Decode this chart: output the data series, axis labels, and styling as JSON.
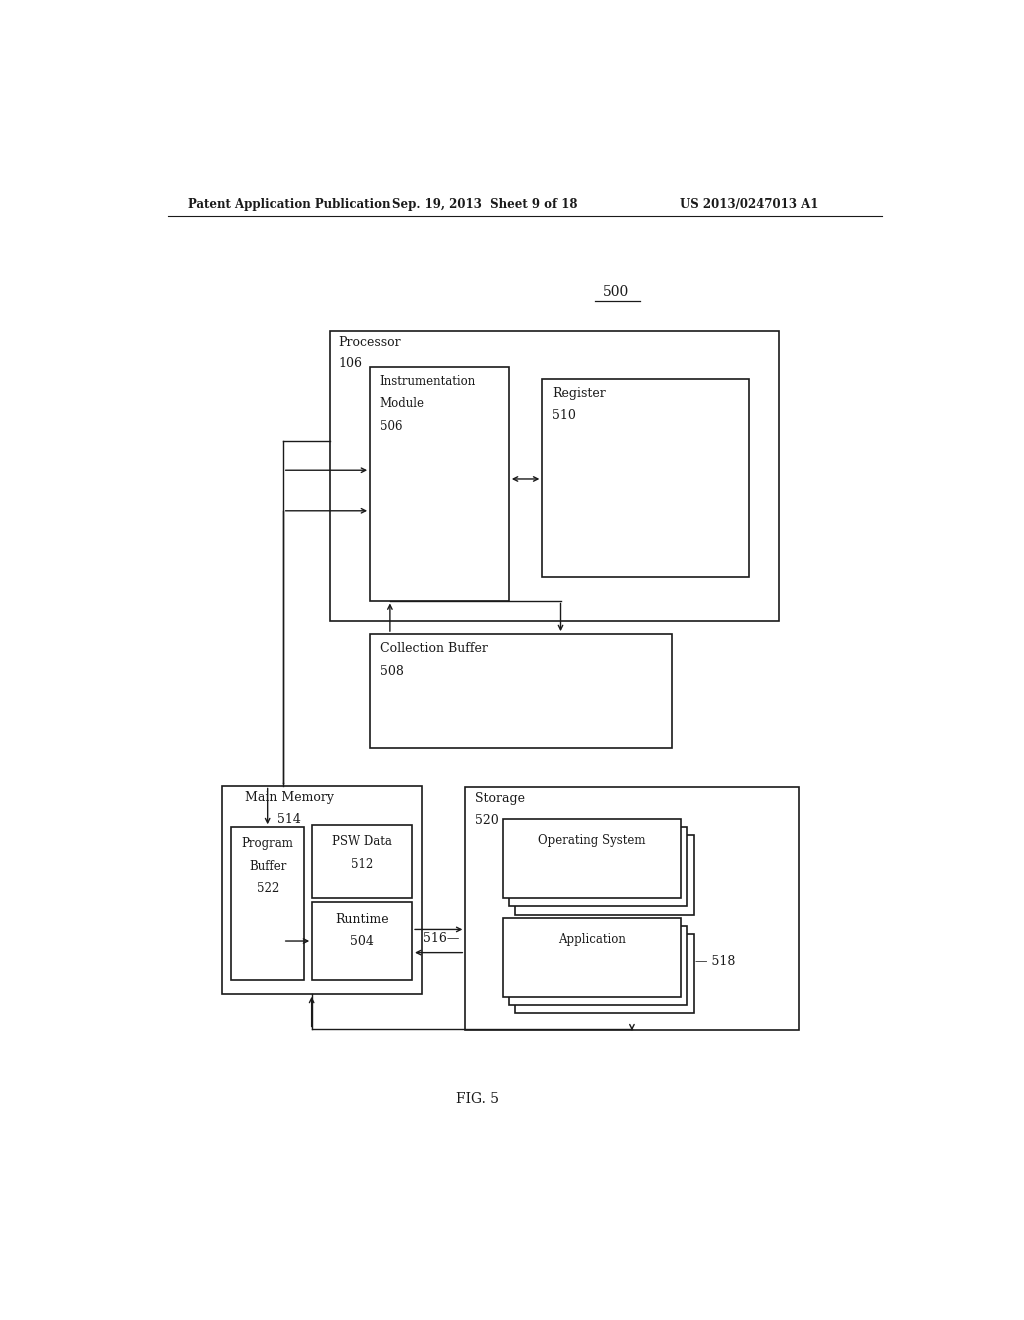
{
  "bg_color": "#ffffff",
  "header_left": "Patent Application Publication",
  "header_mid": "Sep. 19, 2013  Sheet 9 of 18",
  "header_right": "US 2013/0247013 A1",
  "figure_label": "FIG. 5",
  "ref_number": "500",
  "text_color": "#1a1a1a",
  "line_color": "#1a1a1a",
  "lw": 1.2
}
